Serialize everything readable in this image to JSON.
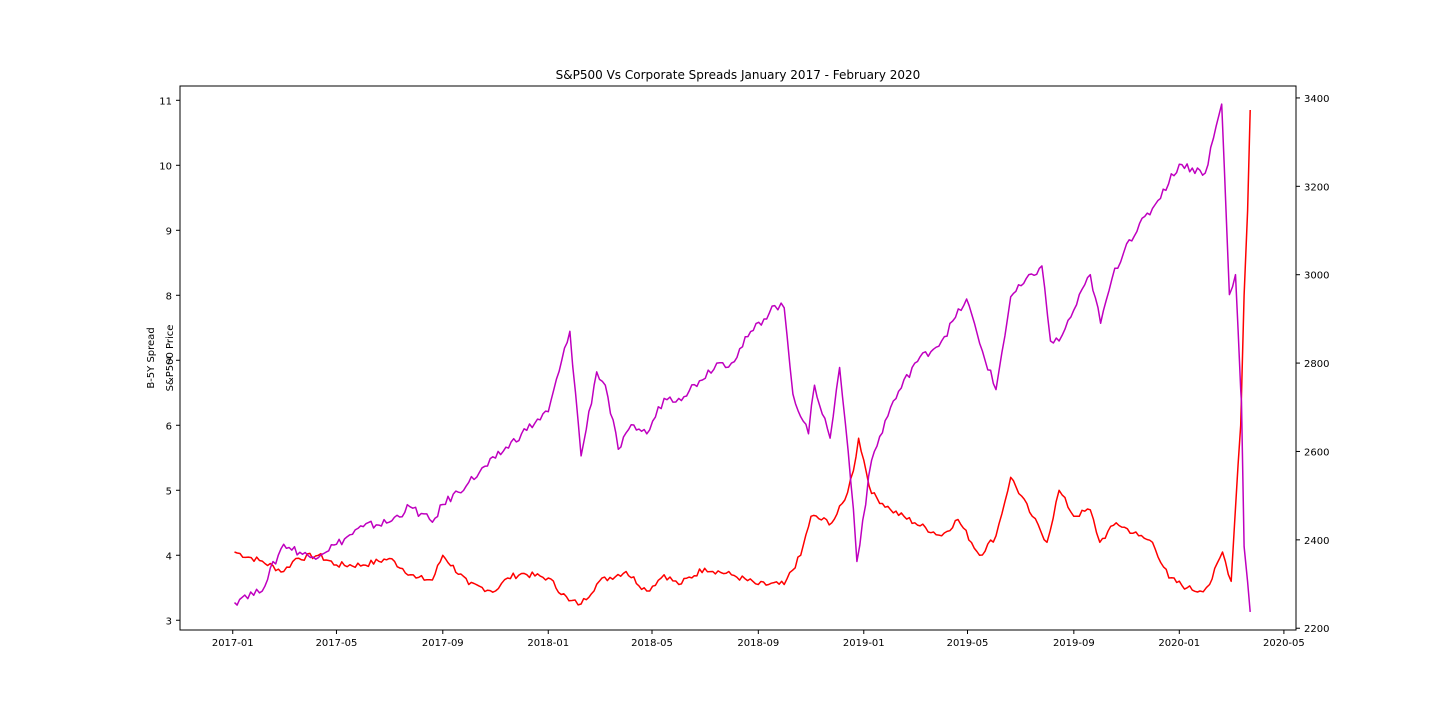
{
  "chart_data": {
    "type": "line",
    "title": "S&P500 Vs Corporate Spreads January 2017 - February 2020",
    "ylabel_left": "B-5Y Spread",
    "ylabel_right": "S&P500 Price",
    "xlim": [
      "2016-11-01",
      "2020-05-15"
    ],
    "ylim_left": [
      2.85,
      11.22
    ],
    "ylim_right": [
      2196,
      3427
    ],
    "x_ticks": [
      "2017-01-01",
      "2017-05-01",
      "2017-09-01",
      "2018-01-01",
      "2018-05-01",
      "2018-09-01",
      "2019-01-01",
      "2019-05-01",
      "2019-09-01",
      "2020-01-01",
      "2020-05-01"
    ],
    "x_tick_labels": [
      "2017-01",
      "2017-05",
      "2017-09",
      "2018-01",
      "2018-05",
      "2018-09",
      "2019-01",
      "2019-05",
      "2019-09",
      "2020-01",
      "2020-05"
    ],
    "y_ticks_left": [
      3,
      4,
      5,
      6,
      7,
      8,
      9,
      10,
      11
    ],
    "y_ticks_right": [
      2200,
      2400,
      2600,
      2800,
      3000,
      3200,
      3400
    ],
    "grid": false,
    "series": [
      {
        "axis": "left",
        "color": "#ff0000",
        "x": [
          "2017-01-03",
          "2017-02-01",
          "2017-03-01",
          "2017-03-15",
          "2017-04-10",
          "2017-05-01",
          "2017-06-01",
          "2017-07-01",
          "2017-08-01",
          "2017-08-20",
          "2017-09-01",
          "2017-10-01",
          "2017-11-01",
          "2017-11-15",
          "2017-12-01",
          "2018-01-01",
          "2018-01-25",
          "2018-02-08",
          "2018-03-01",
          "2018-04-01",
          "2018-04-25",
          "2018-05-15",
          "2018-06-01",
          "2018-07-01",
          "2018-08-01",
          "2018-09-01",
          "2018-10-01",
          "2018-10-20",
          "2018-11-01",
          "2018-11-25",
          "2018-12-10",
          "2018-12-20",
          "2018-12-26",
          "2019-01-10",
          "2019-02-01",
          "2019-03-01",
          "2019-04-01",
          "2019-04-20",
          "2019-05-15",
          "2019-06-03",
          "2019-06-20",
          "2019-07-15",
          "2019-08-01",
          "2019-08-15",
          "2019-09-01",
          "2019-09-20",
          "2019-10-01",
          "2019-10-20",
          "2019-11-15",
          "2019-12-01",
          "2019-12-20",
          "2020-01-10",
          "2020-01-25",
          "2020-02-05",
          "2020-02-20",
          "2020-03-01",
          "2020-03-09",
          "2020-03-12",
          "2020-03-16",
          "2020-03-20",
          "2020-03-23"
        ],
        "values": [
          4.05,
          3.92,
          3.75,
          3.95,
          4.0,
          3.85,
          3.85,
          3.95,
          3.65,
          3.62,
          4.0,
          3.55,
          3.45,
          3.65,
          3.72,
          3.65,
          3.3,
          3.25,
          3.6,
          3.75,
          3.45,
          3.7,
          3.55,
          3.8,
          3.7,
          3.55,
          3.55,
          4.0,
          4.6,
          4.5,
          4.85,
          5.3,
          5.8,
          4.95,
          4.7,
          4.5,
          4.3,
          4.55,
          4.0,
          4.3,
          5.2,
          4.6,
          4.2,
          5.0,
          4.6,
          4.7,
          4.2,
          4.5,
          4.3,
          4.2,
          3.65,
          3.5,
          3.45,
          3.55,
          4.05,
          3.6,
          5.4,
          6.0,
          8.0,
          9.3,
          10.85
        ]
      },
      {
        "axis": "right",
        "color": "#bf00bf",
        "x": [
          "2017-01-03",
          "2017-01-15",
          "2017-02-01",
          "2017-03-01",
          "2017-04-01",
          "2017-05-01",
          "2017-06-01",
          "2017-07-01",
          "2017-07-25",
          "2017-08-20",
          "2017-09-01",
          "2017-10-01",
          "2017-11-01",
          "2017-12-01",
          "2018-01-01",
          "2018-01-26",
          "2018-02-08",
          "2018-02-26",
          "2018-03-08",
          "2018-03-23",
          "2018-04-10",
          "2018-04-25",
          "2018-05-15",
          "2018-06-01",
          "2018-06-25",
          "2018-07-15",
          "2018-08-01",
          "2018-08-20",
          "2018-09-20",
          "2018-10-01",
          "2018-10-11",
          "2018-10-29",
          "2018-11-05",
          "2018-11-23",
          "2018-12-04",
          "2018-12-14",
          "2018-12-20",
          "2018-12-24",
          "2019-01-10",
          "2019-02-01",
          "2019-03-01",
          "2019-04-01",
          "2019-04-30",
          "2019-05-15",
          "2019-06-03",
          "2019-06-20",
          "2019-07-26",
          "2019-08-05",
          "2019-08-15",
          "2019-09-01",
          "2019-09-20",
          "2019-10-02",
          "2019-10-15",
          "2019-11-01",
          "2019-12-01",
          "2020-01-01",
          "2020-01-31",
          "2020-02-19",
          "2020-02-28",
          "2020-03-06",
          "2020-03-12",
          "2020-03-13",
          "2020-03-16",
          "2020-03-20",
          "2020-03-23"
        ],
        "values": [
          2258,
          2275,
          2280,
          2390,
          2360,
          2390,
          2430,
          2440,
          2475,
          2440,
          2480,
          2530,
          2585,
          2640,
          2690,
          2872,
          2590,
          2780,
          2750,
          2605,
          2660,
          2640,
          2720,
          2720,
          2760,
          2800,
          2800,
          2860,
          2930,
          2925,
          2730,
          2640,
          2750,
          2630,
          2790,
          2600,
          2470,
          2351,
          2580,
          2700,
          2800,
          2850,
          2945,
          2845,
          2740,
          2950,
          3020,
          2850,
          2850,
          2920,
          3000,
          2890,
          2990,
          3070,
          3150,
          3250,
          3230,
          3386,
          2955,
          3000,
          2740,
          2710,
          2385,
          2305,
          2237
        ]
      }
    ]
  }
}
